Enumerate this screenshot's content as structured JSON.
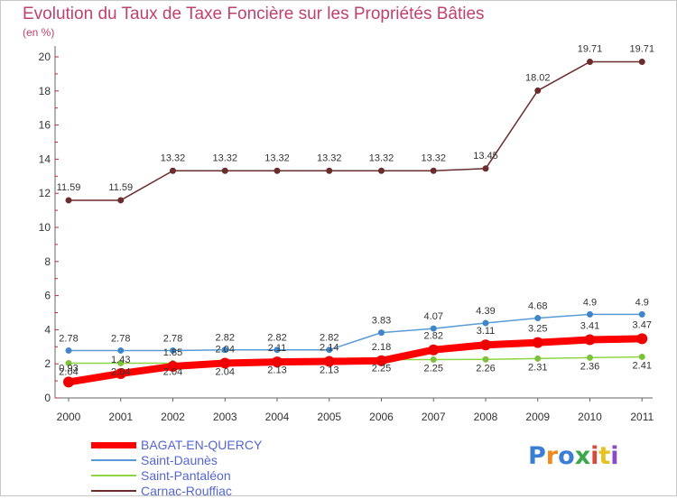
{
  "chart_data": {
    "type": "line",
    "title": "Evolution du Taux de Taxe Foncière sur les Propriétés Bâties",
    "unit_label": "(en %)",
    "x": [
      "2000",
      "2001",
      "2002",
      "2003",
      "2004",
      "2005",
      "2006",
      "2007",
      "2008",
      "2009",
      "2010",
      "2011"
    ],
    "ylim": [
      0,
      20
    ],
    "yticks": [
      0,
      2,
      4,
      6,
      8,
      10,
      12,
      14,
      16,
      18,
      20
    ],
    "grid": false,
    "legend_position": "bottom-left",
    "series": [
      {
        "name": "BAGAT-EN-QUERCY",
        "color": "#ff0000",
        "values": [
          0.93,
          1.43,
          1.85,
          2.04,
          2.11,
          2.14,
          2.18,
          2.82,
          3.11,
          3.25,
          3.41,
          3.47
        ],
        "labels": [
          "0.93",
          "1.43",
          "1.85",
          "2.04",
          "2.11",
          "2.14",
          "2.18",
          "2.82",
          "3.11",
          "3.25",
          "3.41",
          "3.47"
        ]
      },
      {
        "name": "Saint-Daunès",
        "color": "#5b9bd5",
        "values": [
          2.78,
          2.78,
          2.78,
          2.82,
          2.82,
          2.82,
          3.83,
          4.07,
          4.39,
          4.68,
          4.9,
          4.9
        ],
        "labels": [
          "2.78",
          "2.78",
          "2.78",
          "2.82",
          "2.82",
          "2.82",
          "3.83",
          "4.07",
          "4.39",
          "4.68",
          "4.9",
          "4.9"
        ]
      },
      {
        "name": "Saint-Pantaléon",
        "color": "#8fd444",
        "values": [
          2.04,
          2.04,
          2.04,
          2.04,
          2.13,
          2.13,
          2.25,
          2.25,
          2.26,
          2.31,
          2.36,
          2.41
        ],
        "labels": [
          "2.04",
          "2.04",
          "2.04",
          "2.04",
          "2.13",
          "2.13",
          "2.25",
          "2.25",
          "2.26",
          "2.31",
          "2.36",
          "2.41"
        ]
      },
      {
        "name": "Carnac-Rouffiac",
        "color": "#6b2c2c",
        "values": [
          11.59,
          11.59,
          13.32,
          13.32,
          13.32,
          13.32,
          13.32,
          13.32,
          13.45,
          18.02,
          19.71,
          19.71
        ],
        "labels": [
          "11.59",
          "11.59",
          "13.32",
          "13.32",
          "13.32",
          "13.32",
          "13.32",
          "13.32",
          "13.45",
          "18.02",
          "19.71",
          "19.71"
        ]
      }
    ]
  },
  "logo": {
    "letters": [
      "P",
      "r",
      "o",
      "x",
      "i",
      "t",
      "i"
    ],
    "colors": [
      "#3a7fd5",
      "#f08a1c",
      "#3a7fd5",
      "#3aa84a",
      "#d84a3a",
      "#e6c21f",
      "#8a4ac8"
    ]
  }
}
